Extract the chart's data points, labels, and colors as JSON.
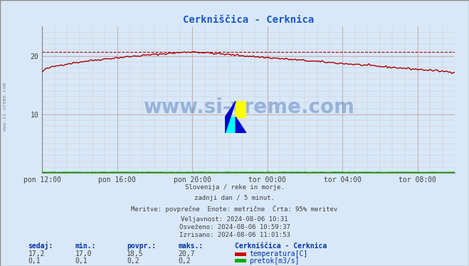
{
  "title": "Cerkniščica - Cerknica",
  "title_color": "#1a56c8",
  "bg_color": "#d8e8f8",
  "plot_bg_color": "#d8e8f8",
  "grid_color": "#c0a0a0",
  "x_labels": [
    "pon 12:00",
    "pon 16:00",
    "pon 20:00",
    "tor 00:00",
    "tor 04:00",
    "tor 08:00"
  ],
  "x_ticks": [
    0,
    48,
    96,
    144,
    192,
    240
  ],
  "x_max": 264,
  "y_min": 0,
  "y_max": 25,
  "y_ticks": [
    10,
    20
  ],
  "dashed_line_y": 20.7,
  "temp_color": "#aa0000",
  "flow_color": "#00aa00",
  "watermark": "www.si-vreme.com",
  "text_info": [
    "Slovenija / reke in morje.",
    "zadnji dan / 5 minut.",
    "Meritve: povprečne  Enote: metrične  Črta: 95% meritev",
    "Veljavnost: 2024-08-06 10:31",
    "Osveženo: 2024-08-06 10:59:37",
    "Izrisano: 2024-08-06 11:01:53"
  ],
  "legend_title": "Cerkniščica - Cerknica",
  "legend_items": [
    {
      "label": "temperatura[C]",
      "color": "#cc0000"
    },
    {
      "label": "pretok[m3/s]",
      "color": "#00aa00"
    }
  ],
  "table_headers": [
    "sedaj:",
    "min.:",
    "povpr.:",
    "maks.:"
  ],
  "table_temp": [
    "17,2",
    "17,0",
    "18,5",
    "20,7"
  ],
  "table_flow": [
    "0,1",
    "0,1",
    "0,2",
    "0,2"
  ],
  "sidebar_text": "www.si-vreme.com",
  "logo_colors": {
    "yellow": "#ffff00",
    "cyan": "#00ffff",
    "blue": "#0000ff",
    "dark_blue": "#000060"
  }
}
